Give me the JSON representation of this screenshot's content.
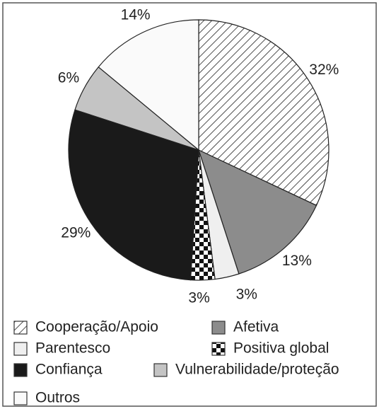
{
  "chart_data": {
    "type": "pie",
    "categories": [
      "Cooperação/Apoio",
      "Afetiva",
      "Parentesco",
      "Positiva global",
      "Confiança",
      "Vulnerabilidade/proteção",
      "Outros"
    ],
    "values": [
      32,
      13,
      3,
      3,
      29,
      6,
      14
    ],
    "value_labels": [
      "32%",
      "13%",
      "3%",
      "3%",
      "29%",
      "6%",
      "14%"
    ],
    "colors": [
      "#222222",
      "#8c8c8c",
      "#efefef",
      "#111111",
      "#1a1a1a",
      "#c4c4c4",
      "#fafafa"
    ],
    "patterns": [
      "hatch",
      "solid",
      "solid",
      "checker",
      "solid",
      "solid",
      "solid"
    ],
    "legend_order": [
      0,
      1,
      2,
      3,
      4,
      5,
      6
    ],
    "legend": "bottom"
  }
}
